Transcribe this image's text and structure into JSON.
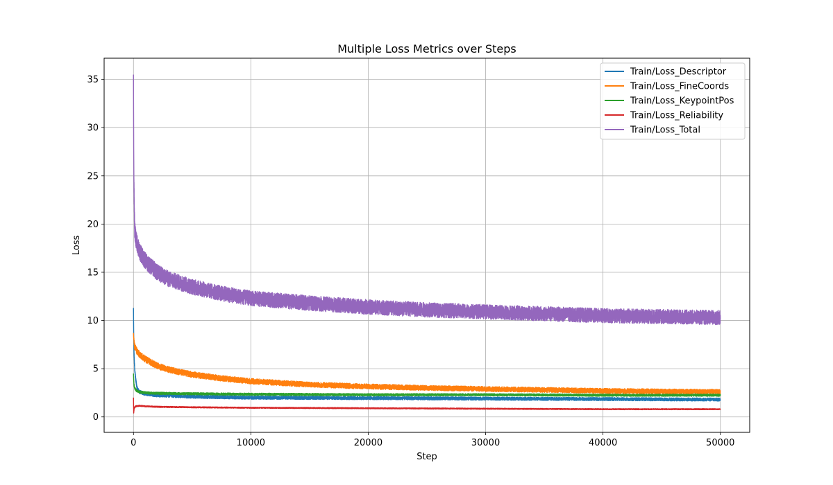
{
  "chart_data": {
    "type": "line",
    "title": "Multiple Loss Metrics over Steps",
    "xlabel": "Step",
    "ylabel": "Loss",
    "xlim": [
      -2500,
      52500
    ],
    "ylim": [
      -1.6,
      37.2
    ],
    "xticks": [
      0,
      10000,
      20000,
      30000,
      40000,
      50000
    ],
    "yticks": [
      0,
      5,
      10,
      15,
      20,
      25,
      30,
      35
    ],
    "grid": true,
    "legend_position": "top-right",
    "series": [
      {
        "name": "Train/Loss_Descriptor",
        "color": "#1f77b4",
        "noise": 0.35,
        "x": [
          0,
          20,
          50,
          100,
          200,
          300,
          500,
          1000,
          2000,
          5000,
          10000,
          20000,
          30000,
          40000,
          50000
        ],
        "y": [
          11.3,
          8.5,
          6.5,
          5.0,
          3.8,
          3.0,
          2.6,
          2.4,
          2.25,
          2.1,
          2.0,
          1.95,
          1.9,
          1.85,
          1.8
        ]
      },
      {
        "name": "Train/Loss_FineCoords",
        "color": "#ff7f0e",
        "noise": 0.55,
        "x": [
          0,
          20,
          50,
          100,
          300,
          500,
          1000,
          2000,
          3000,
          5000,
          7500,
          10000,
          15000,
          20000,
          25000,
          30000,
          35000,
          40000,
          45000,
          50000
        ],
        "y": [
          8.7,
          8.2,
          7.8,
          7.3,
          6.8,
          6.5,
          6.0,
          5.3,
          4.9,
          4.4,
          4.0,
          3.7,
          3.35,
          3.15,
          3.0,
          2.9,
          2.8,
          2.7,
          2.65,
          2.6
        ]
      },
      {
        "name": "Train/Loss_KeypointPos",
        "color": "#2ca02c",
        "noise": 0.25,
        "x": [
          0,
          20,
          50,
          100,
          200,
          300,
          500,
          1000,
          2000,
          5000,
          10000,
          20000,
          30000,
          40000,
          50000
        ],
        "y": [
          4.5,
          3.8,
          3.3,
          3.0,
          2.8,
          2.7,
          2.6,
          2.5,
          2.45,
          2.4,
          2.35,
          2.3,
          2.3,
          2.25,
          2.25
        ]
      },
      {
        "name": "Train/Loss_Reliability",
        "color": "#d62728",
        "noise": 0.12,
        "x": [
          0,
          20,
          50,
          100,
          200,
          500,
          1000,
          2000,
          5000,
          10000,
          20000,
          30000,
          40000,
          50000
        ],
        "y": [
          2.0,
          0.4,
          0.8,
          1.0,
          1.1,
          1.15,
          1.1,
          1.05,
          1.0,
          0.95,
          0.9,
          0.85,
          0.8,
          0.8
        ]
      },
      {
        "name": "Train/Loss_Total",
        "color": "#9467bd",
        "noise": 1.6,
        "x": [
          0,
          20,
          40,
          60,
          100,
          200,
          300,
          500,
          1000,
          2000,
          3000,
          5000,
          7500,
          10000,
          15000,
          20000,
          25000,
          30000,
          35000,
          40000,
          45000,
          50000
        ],
        "y": [
          35.5,
          28.0,
          24.0,
          22.5,
          19.5,
          18.5,
          18.0,
          17.2,
          16.2,
          15.0,
          14.3,
          13.5,
          12.8,
          12.3,
          11.8,
          11.4,
          11.1,
          10.9,
          10.7,
          10.5,
          10.4,
          10.3
        ]
      }
    ]
  }
}
